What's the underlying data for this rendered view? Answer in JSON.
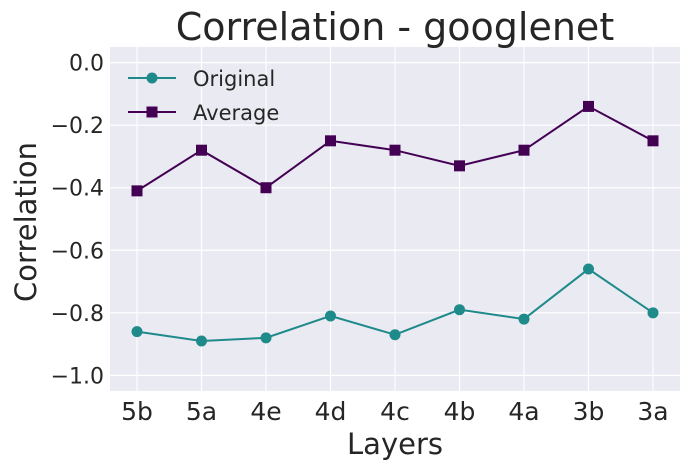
{
  "chart_data": {
    "type": "line",
    "title": "Correlation - googlenet",
    "xlabel": "Layers",
    "ylabel": "Correlation",
    "categories": [
      "5b",
      "5a",
      "4e",
      "4d",
      "4c",
      "4b",
      "4a",
      "3b",
      "3a"
    ],
    "ylim": [
      -1.05,
      0.05
    ],
    "yticks": [
      0.0,
      -0.2,
      -0.4,
      -0.6,
      -0.8,
      -1.0
    ],
    "ytick_labels": [
      "0.0",
      "−0.2",
      "−0.4",
      "−0.6",
      "−0.8",
      "−1.0"
    ],
    "grid": true,
    "legend_position": "top-left",
    "series": [
      {
        "name": "Original",
        "marker": "circle",
        "color": "#1f8a8a",
        "values": [
          -0.86,
          -0.89,
          -0.88,
          -0.81,
          -0.87,
          -0.79,
          -0.82,
          -0.66,
          -0.8
        ]
      },
      {
        "name": "Average",
        "marker": "square",
        "color": "#440154",
        "values": [
          -0.41,
          -0.28,
          -0.4,
          -0.25,
          -0.28,
          -0.33,
          -0.28,
          -0.14,
          -0.25
        ]
      }
    ]
  }
}
